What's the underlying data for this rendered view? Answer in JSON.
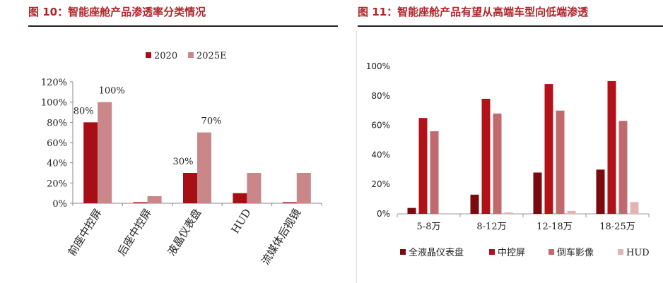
{
  "figures": [
    {
      "title": "图 10：智能座舱产品渗透率分类情况"
    },
    {
      "title": "图 11：智能座舱产品有望从高端车型向低端渗透"
    }
  ],
  "chart_data": [
    {
      "type": "bar",
      "title": "图 10：智能座舱产品渗透率分类情况",
      "categories": [
        "前座中控屏",
        "后座中控屏",
        "液晶仪表盘",
        "HUD",
        "流媒体后视镜"
      ],
      "series": [
        {
          "name": "2020",
          "values": [
            80,
            1,
            30,
            10,
            1
          ],
          "color": "#a50f15"
        },
        {
          "name": "2025E",
          "values": [
            100,
            7,
            70,
            30,
            30
          ],
          "color": "#c9878a"
        }
      ],
      "data_labels": [
        {
          "series": "2020",
          "category": "前座中控屏",
          "text": "80%"
        },
        {
          "series": "2025E",
          "category": "前座中控屏",
          "text": "100%"
        },
        {
          "series": "2020",
          "category": "液晶仪表盘",
          "text": "30%"
        },
        {
          "series": "2025E",
          "category": "液晶仪表盘",
          "text": "70%"
        }
      ],
      "ylim": [
        0,
        120
      ],
      "yticks": [
        "0%",
        "20%",
        "40%",
        "60%",
        "80%",
        "100%",
        "120%"
      ],
      "legend_position": "top",
      "grid": false
    },
    {
      "type": "bar",
      "title": "图 11：智能座舱产品有望从高端车型向低端渗透",
      "categories": [
        "5-8万",
        "8-12万",
        "12-18万",
        "18-25万"
      ],
      "series": [
        {
          "name": "全液晶仪表盘",
          "values": [
            4,
            13,
            28,
            30
          ],
          "color": "#7a0a0e"
        },
        {
          "name": "中控屏",
          "values": [
            65,
            78,
            88,
            90
          ],
          "color": "#b3111a"
        },
        {
          "name": "倒车影像",
          "values": [
            56,
            68,
            70,
            63
          ],
          "color": "#c06a6f"
        },
        {
          "name": "HUD",
          "values": [
            0,
            1,
            2,
            8
          ],
          "color": "#e3b4b6"
        }
      ],
      "ylim": [
        0,
        100
      ],
      "yticks": [
        "0%",
        "20%",
        "40%",
        "60%",
        "80%",
        "100%"
      ],
      "legend_position": "bottom",
      "grid": false
    }
  ]
}
